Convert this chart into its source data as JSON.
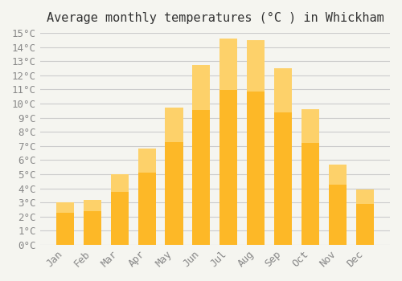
{
  "title": "Average monthly temperatures (°C ) in Whickham",
  "months": [
    "Jan",
    "Feb",
    "Mar",
    "Apr",
    "May",
    "Jun",
    "Jul",
    "Aug",
    "Sep",
    "Oct",
    "Nov",
    "Dec"
  ],
  "values": [
    3.0,
    3.2,
    5.0,
    6.8,
    9.7,
    12.7,
    14.6,
    14.5,
    12.5,
    9.6,
    5.7,
    3.9
  ],
  "bar_color_main": "#FDB827",
  "bar_color_gradient_top": "#FDD16A",
  "ylim": [
    0,
    15
  ],
  "ytick_step": 1,
  "background_color": "#F5F5F0",
  "grid_color": "#CCCCCC",
  "title_fontsize": 11,
  "tick_fontsize": 9,
  "font_family": "monospace"
}
